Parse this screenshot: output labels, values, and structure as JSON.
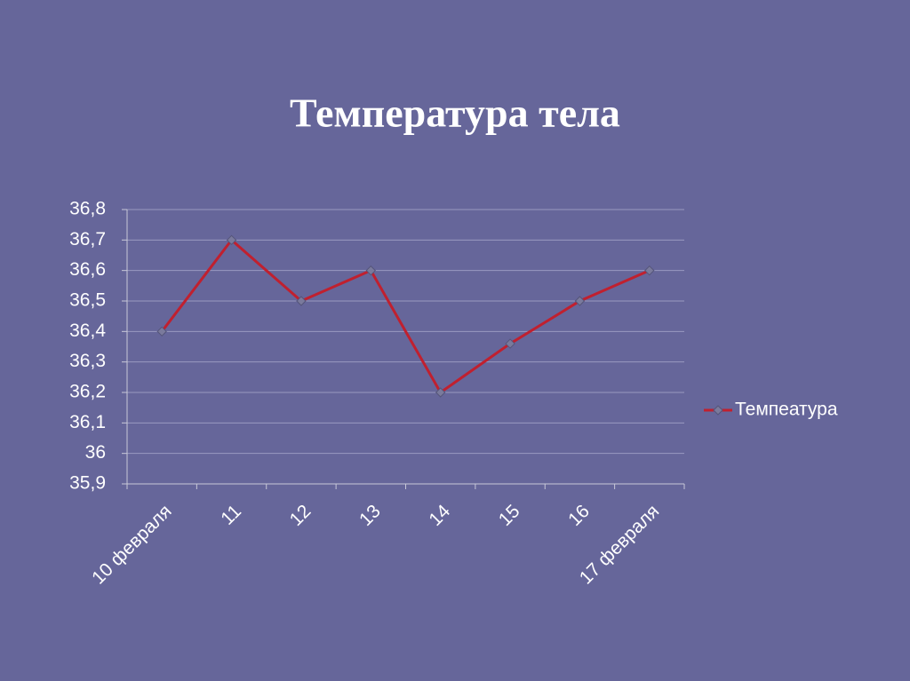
{
  "chart_data": {
    "type": "line",
    "title": "Температура тела",
    "categories": [
      "10 февраля",
      "11",
      "12",
      "13",
      "14",
      "15",
      "16",
      "17  февраля"
    ],
    "series": [
      {
        "name": "Темпеатура",
        "color": "#c0202f",
        "values": [
          36.4,
          36.7,
          36.5,
          36.6,
          36.2,
          36.36,
          36.5,
          36.6
        ]
      }
    ],
    "ylim": [
      35.9,
      36.8
    ],
    "yticks": [
      {
        "value": 35.9,
        "label": "35,9"
      },
      36,
      {
        "value": 36.1,
        "label": "36,1"
      },
      {
        "value": 36.2,
        "label": "36,2"
      },
      {
        "value": 36.3,
        "label": "36,3"
      },
      {
        "value": 36.4,
        "label": "36,4"
      },
      {
        "value": 36.5,
        "label": "36,5"
      },
      {
        "value": 36.6,
        "label": "36,6"
      },
      {
        "value": 36.7,
        "label": "36,7"
      },
      {
        "value": 36.8,
        "label": "36,8"
      }
    ],
    "grid": true,
    "legend": "right"
  }
}
